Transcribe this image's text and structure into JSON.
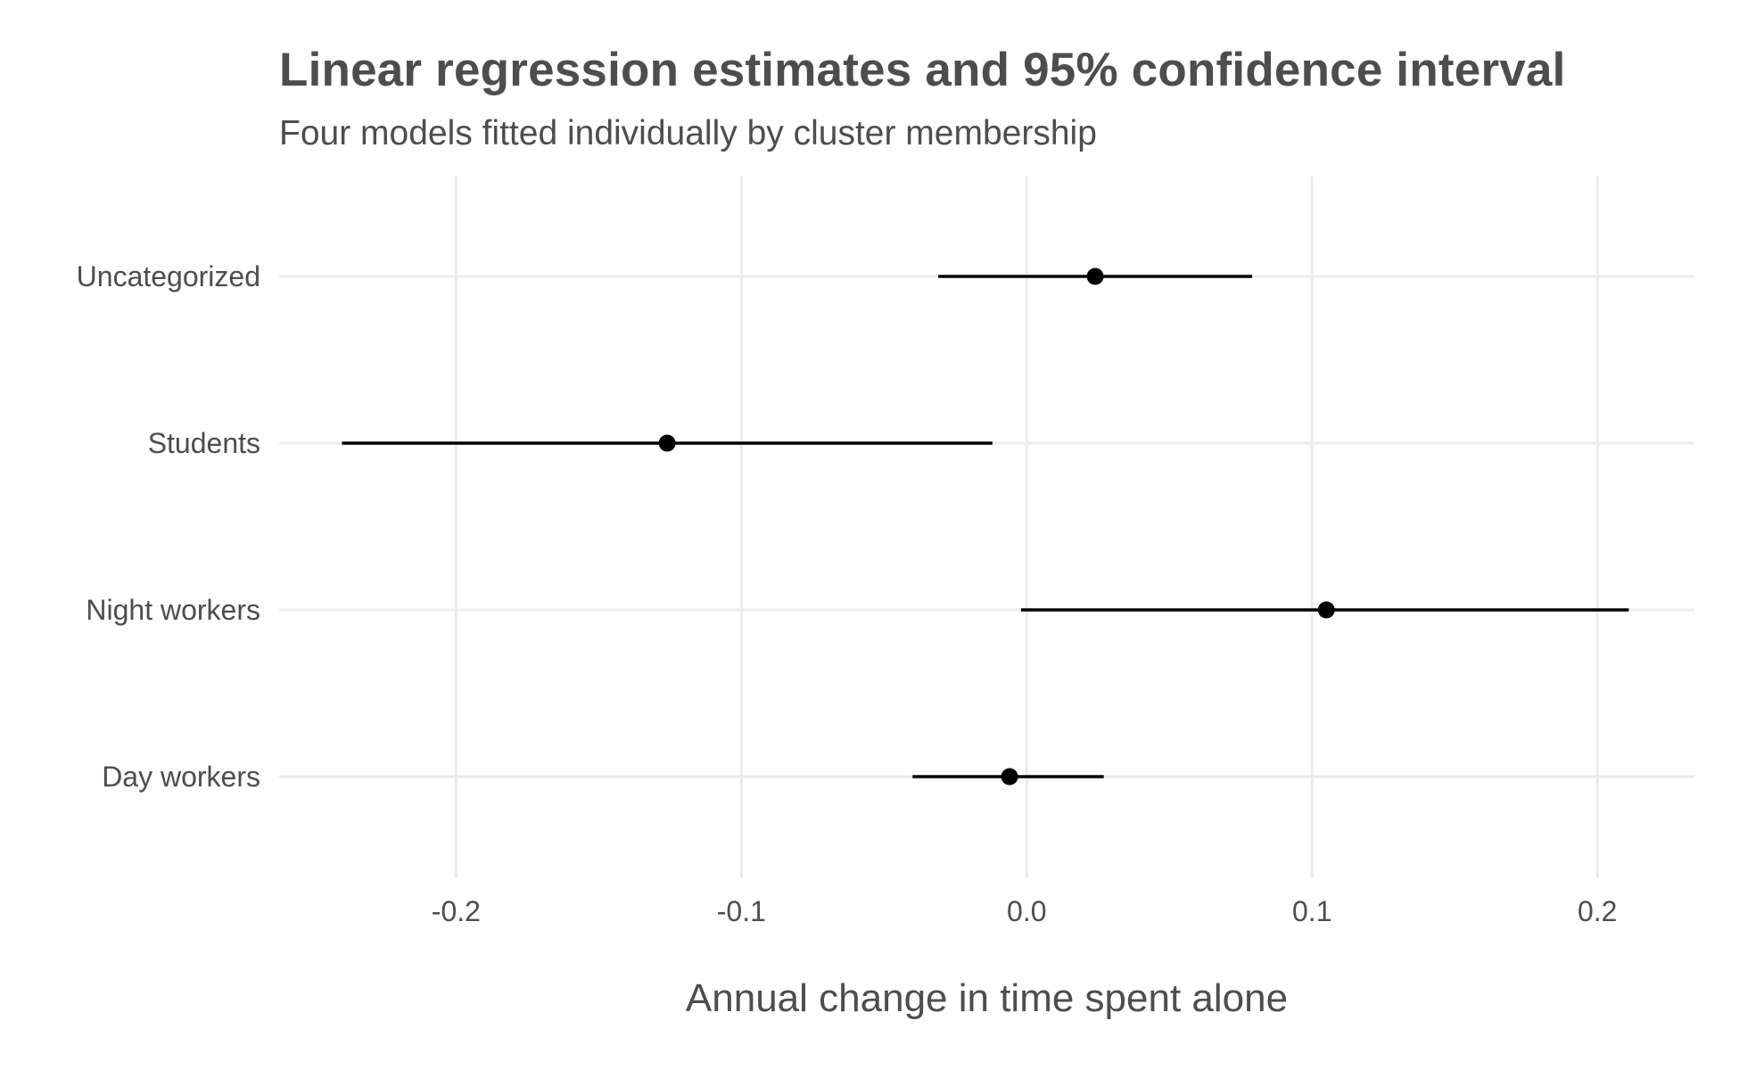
{
  "chart": {
    "title": "Linear regression estimates and 95% confidence interval",
    "subtitle": "Four models fitted individually by cluster membership"
  },
  "chart_data": {
    "type": "scatter",
    "subtype": "point-range",
    "title": "Linear regression estimates and 95% confidence interval",
    "subtitle": "Four models fitted individually by cluster membership",
    "xlabel": "Annual change in time spent alone",
    "ylabel": "",
    "xlim": [
      -0.262,
      0.234
    ],
    "x_ticks": [
      -0.2,
      -0.1,
      0.0,
      0.1,
      0.2
    ],
    "x_tick_labels": [
      "-0.2",
      "-0.1",
      "0.0",
      "0.1",
      "0.2"
    ],
    "categories": [
      "Uncategorized",
      "Students",
      "Night workers",
      "Day workers"
    ],
    "estimates": [
      0.024,
      -0.126,
      0.105,
      -0.006
    ],
    "ci_low": [
      -0.031,
      -0.24,
      -0.002,
      -0.04
    ],
    "ci_high": [
      0.079,
      -0.012,
      0.211,
      0.027
    ],
    "grid": true,
    "legend": "none",
    "colors": {
      "point": "#000000",
      "interval": "#000000",
      "grid": "#ebebeb",
      "text": "#4d4d4d"
    }
  }
}
